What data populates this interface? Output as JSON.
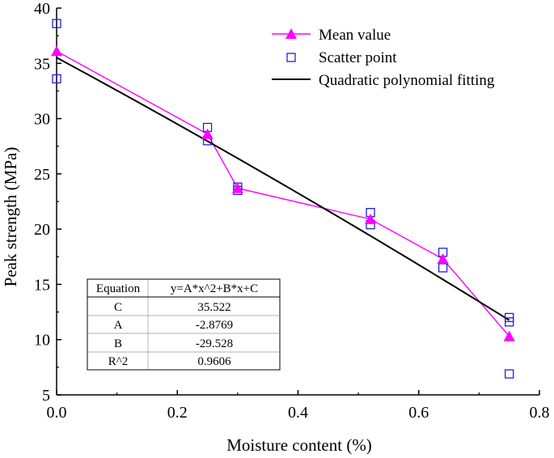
{
  "chart_data": {
    "type": "scatter",
    "xlabel": "Moisture content (%)",
    "ylabel": "Peak strength (MPa)",
    "xlim": [
      0.0,
      0.8
    ],
    "ylim": [
      5,
      40
    ],
    "xticks": [
      0.0,
      0.2,
      0.4,
      0.6,
      0.8
    ],
    "xtick_labels": [
      "0.0",
      "0.2",
      "0.4",
      "0.6",
      "0.8"
    ],
    "yticks": [
      5,
      10,
      15,
      20,
      25,
      30,
      35,
      40
    ],
    "ytick_labels": [
      "5",
      "10",
      "15",
      "20",
      "25",
      "30",
      "35",
      "40"
    ],
    "grid": false,
    "legend_position": "top-right",
    "series": [
      {
        "name": "Mean value",
        "kind": "line-marker",
        "marker": "triangle",
        "color": "#ff00ff",
        "x": [
          0.0,
          0.25,
          0.3,
          0.52,
          0.64,
          0.75
        ],
        "y": [
          36.1,
          28.6,
          23.7,
          20.9,
          17.3,
          10.3
        ]
      },
      {
        "name": "Scatter point",
        "kind": "marker",
        "marker": "square-open",
        "color": "#1f1fdf",
        "x": [
          0.0,
          0.0,
          0.25,
          0.25,
          0.3,
          0.3,
          0.52,
          0.52,
          0.64,
          0.64,
          0.75,
          0.75,
          0.75
        ],
        "y": [
          38.6,
          33.6,
          29.2,
          28.0,
          23.8,
          23.5,
          21.5,
          20.4,
          17.9,
          16.5,
          12.0,
          11.6,
          6.9
        ]
      },
      {
        "name": "Quadratic polynomial fitting",
        "kind": "curve",
        "color": "#000000",
        "equation": {
          "A": -2.8769,
          "B": -29.528,
          "C": 35.522
        },
        "x_range": [
          0.0,
          0.75
        ]
      }
    ],
    "fit_table": {
      "header": [
        "Equation",
        "y=A*x^2+B*x+C"
      ],
      "rows": [
        [
          "C",
          "35.522"
        ],
        [
          "A",
          "-2.8769"
        ],
        [
          "B",
          "-29.528"
        ],
        [
          "R^2",
          "0.9606"
        ]
      ]
    }
  }
}
